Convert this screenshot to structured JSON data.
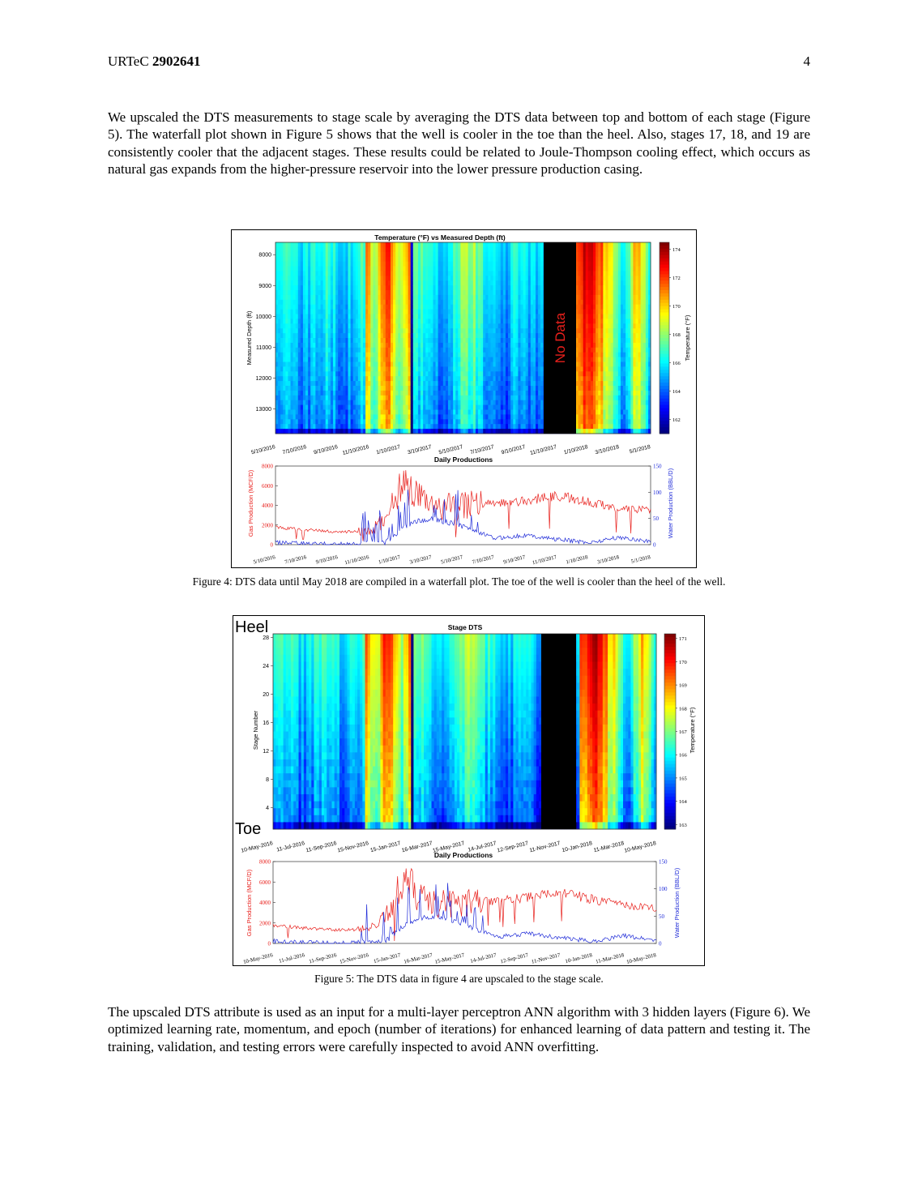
{
  "header": {
    "conference": "URTeC",
    "paper_number": "2902641",
    "page_number": "4"
  },
  "paragraph1": "We upscaled the DTS measurements to stage scale by averaging the DTS data between top and bottom of each stage (Figure 5).  The waterfall plot shown in Figure 5 shows that the well is cooler in the toe than the heel. Also, stages 17, 18, and 19 are consistently cooler that the adjacent stages. These results could be related to Joule-Thompson cooling effect, which occurs as natural gas expands from the higher-pressure reservoir into the lower pressure production casing.",
  "paragraph2": "The upscaled DTS attribute is used as an input for a multi-layer perceptron ANN algorithm with 3 hidden layers (Figure 6). We optimized learning rate, momentum, and epoch (number of iterations) for enhanced learning of data pattern and testing it. The training, validation, and testing errors were carefully inspected to avoid ANN overfitting.",
  "figure4": {
    "caption": "Figure 4: DTS data until May 2018 are compiled in a waterfall plot. The toe of the well is cooler than the heel of the well.",
    "heatmap_title": "Temperature (°F) vs Measured Depth (ft)",
    "ylabel": "Measured Depth (ft)",
    "colorbar_label": "Temperature (°F)",
    "no_data_label": "No Data",
    "production_title": "Daily Productions",
    "gas_label": "Gas Production (MCF/D)",
    "water_label": "Water Production (BBL/D)"
  },
  "figure5": {
    "caption": "Figure 5: The DTS data in figure 4 are upscaled to the stage scale.",
    "heatmap_title": "Stage DTS",
    "ylabel": "Stage Number",
    "colorbar_label": "Temperature (°F)",
    "heel_label": "Heel",
    "toe_label": "Toe",
    "production_title": "Daily Productions",
    "gas_label": "Gas Production (MCF/D)",
    "water_label": "Water Production (BBL/D)"
  },
  "chart_data": [
    {
      "type": "heatmap",
      "title": "Temperature (°F) vs Measured Depth (ft)",
      "ylabel": "Measured Depth (ft)",
      "yticks": [
        8000,
        9000,
        10000,
        11000,
        12000,
        13000
      ],
      "ylim": [
        7600,
        13800
      ],
      "xticks": [
        "5/10/2016",
        "7/10/2016",
        "9/10/2016",
        "11/10/2016",
        "1/10/2017",
        "3/10/2017",
        "5/10/2017",
        "7/10/2017",
        "9/10/2017",
        "11/10/2017",
        "1/10/2018",
        "3/10/2018",
        "5/1/2018"
      ],
      "colorbar_ticks": [
        162,
        164,
        166,
        168,
        170,
        172,
        174
      ],
      "colorbar_range": [
        161,
        174.5
      ],
      "no_data_interval": [
        "2017-11-10",
        "2018-01-10"
      ],
      "colormap": "jet"
    },
    {
      "type": "line",
      "title": "Daily Productions",
      "x_range": [
        "2016-05-10",
        "2018-05-10"
      ],
      "xticks": [
        "5/10/2016",
        "7/10/2016",
        "9/10/2016",
        "11/10/2016",
        "1/10/2017",
        "3/10/2017",
        "5/10/2017",
        "7/10/2017",
        "9/10/2017",
        "11/10/2017",
        "1/10/2018",
        "3/10/2018",
        "5/1/2018"
      ],
      "left_axis": {
        "label": "Gas Production (MCF/D)",
        "ticks": [
          0,
          2000,
          4000,
          6000,
          8000
        ],
        "range": [
          0,
          8000
        ],
        "color": "#e8201c"
      },
      "right_axis": {
        "label": "Water Production (BBL/D)",
        "ticks": [
          0,
          50,
          100,
          150
        ],
        "range": [
          0,
          150
        ],
        "color": "#1f2bd8"
      },
      "series": [
        {
          "name": "Gas Production (MCF/D)",
          "color": "#e8201c",
          "x": [
            "2016-05-10",
            "2016-07-10",
            "2016-09-10",
            "2016-11-10",
            "2016-12-10",
            "2017-01-10",
            "2017-02-10",
            "2017-03-10",
            "2017-05-10",
            "2017-07-10",
            "2017-09-10",
            "2017-11-10",
            "2018-01-10",
            "2018-03-10",
            "2018-05-10"
          ],
          "values": [
            1800,
            1500,
            1300,
            1400,
            2600,
            6400,
            4800,
            3800,
            4000,
            4200,
            4500,
            5000,
            4300,
            3700,
            3500
          ]
        },
        {
          "name": "Water Production (BBL/D)",
          "color": "#1f2bd8",
          "x": [
            "2016-05-10",
            "2016-07-10",
            "2016-09-10",
            "2016-11-10",
            "2016-12-10",
            "2017-01-10",
            "2017-02-10",
            "2017-03-10",
            "2017-05-10",
            "2017-07-10",
            "2017-09-10",
            "2017-11-10",
            "2018-01-10",
            "2018-03-10",
            "2018-05-10"
          ],
          "values": [
            4,
            2,
            1,
            2,
            3,
            30,
            45,
            50,
            35,
            12,
            18,
            10,
            4,
            14,
            6
          ]
        }
      ]
    },
    {
      "type": "heatmap",
      "title": "Stage DTS",
      "ylabel": "Stage Number",
      "yticks": [
        4,
        8,
        12,
        16,
        20,
        24,
        28
      ],
      "ylim": [
        1,
        28.5
      ],
      "xticks": [
        "10-May-2016",
        "11-Jul-2016",
        "11-Sep-2016",
        "15-Nov-2016",
        "15-Jan-2017",
        "16-Mar-2017",
        "15-May-2017",
        "14-Jul-2017",
        "12-Sep-2017",
        "11-Nov-2017",
        "10-Jan-2018",
        "11-Mar-2018",
        "10-May-2018"
      ],
      "colorbar_ticks": [
        163,
        164,
        165,
        166,
        167,
        168,
        169,
        170,
        171
      ],
      "colorbar_range": [
        162.8,
        171.2
      ],
      "colormap": "jet"
    },
    {
      "type": "line",
      "title": "Daily Productions",
      "x_range": [
        "2016-05-10",
        "2018-05-10"
      ],
      "xticks": [
        "10-May-2016",
        "11-Jul-2016",
        "11-Sep-2016",
        "15-Nov-2016",
        "15-Jan-2017",
        "16-Mar-2017",
        "15-May-2017",
        "14-Jul-2017",
        "12-Sep-2017",
        "11-Nov-2017",
        "10-Jan-2018",
        "11-Mar-2018",
        "10-May-2018"
      ],
      "left_axis": {
        "label": "Gas Production (MCF/D)",
        "ticks": [
          0,
          2000,
          4000,
          6000,
          8000
        ],
        "range": [
          0,
          8000
        ],
        "color": "#e8201c"
      },
      "right_axis": {
        "label": "Water Production (BBL/D)",
        "ticks": [
          0,
          50,
          100,
          150
        ],
        "range": [
          0,
          150
        ],
        "color": "#1f2bd8"
      },
      "series": [
        {
          "name": "Gas Production (MCF/D)",
          "color": "#e8201c",
          "x": [
            "2016-05-10",
            "2016-07-10",
            "2016-09-10",
            "2016-11-10",
            "2016-12-10",
            "2017-01-10",
            "2017-02-10",
            "2017-03-10",
            "2017-05-10",
            "2017-07-10",
            "2017-09-10",
            "2017-11-10",
            "2018-01-10",
            "2018-03-10",
            "2018-05-10"
          ],
          "values": [
            1800,
            1500,
            1300,
            1400,
            2600,
            6400,
            4800,
            3800,
            4000,
            4200,
            4500,
            5000,
            4300,
            3700,
            3500
          ]
        },
        {
          "name": "Water Production (BBL/D)",
          "color": "#1f2bd8",
          "x": [
            "2016-05-10",
            "2016-07-10",
            "2016-09-10",
            "2016-11-10",
            "2016-12-10",
            "2017-01-10",
            "2017-02-10",
            "2017-03-10",
            "2017-05-10",
            "2017-07-10",
            "2017-09-10",
            "2017-11-10",
            "2018-01-10",
            "2018-03-10",
            "2018-05-10"
          ],
          "values": [
            4,
            2,
            1,
            2,
            3,
            30,
            45,
            50,
            35,
            12,
            18,
            10,
            4,
            14,
            6
          ]
        }
      ]
    }
  ]
}
